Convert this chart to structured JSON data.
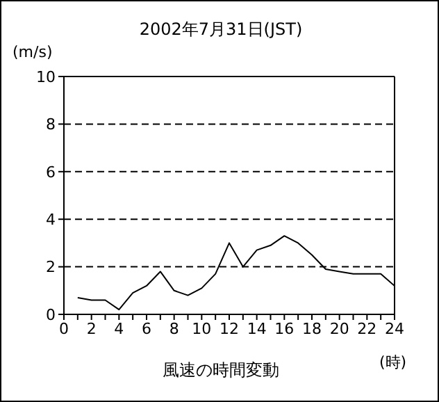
{
  "chart_data": {
    "type": "line",
    "title": "2002年7月31日(JST)",
    "xlabel": "風速の時間変動",
    "ylabel": "(m/s)",
    "annotations": [
      "(時)"
    ],
    "x": [
      1,
      2,
      3,
      4,
      5,
      6,
      7,
      8,
      9,
      10,
      11,
      12,
      13,
      14,
      15,
      16,
      17,
      18,
      19,
      20,
      21,
      22,
      23,
      24
    ],
    "series": [
      {
        "color": "#000000",
        "values": [
          0.7,
          0.6,
          0.6,
          0.2,
          0.9,
          1.2,
          1.8,
          1.0,
          0.8,
          1.1,
          1.7,
          3.0,
          2.0,
          2.7,
          2.9,
          3.3,
          3.0,
          2.5,
          1.9,
          1.8,
          1.7,
          1.7,
          1.7,
          1.2
        ]
      }
    ],
    "xlim": [
      0,
      24
    ],
    "xticks": [
      0,
      {
        "value": 1,
        "label": null
      },
      2,
      {
        "value": 3,
        "label": null
      },
      4,
      {
        "value": 5,
        "label": null
      },
      6,
      {
        "value": 7,
        "label": null
      },
      8,
      {
        "value": 9,
        "label": null
      },
      10,
      {
        "value": 11,
        "label": null
      },
      12,
      {
        "value": 13,
        "label": null
      },
      14,
      {
        "value": 15,
        "label": null
      },
      16,
      {
        "value": 17,
        "label": null
      },
      18,
      {
        "value": 19,
        "label": null
      },
      20,
      {
        "value": 21,
        "label": null
      },
      22,
      {
        "value": 23,
        "label": null
      },
      24
    ],
    "ylim": [
      0,
      10
    ],
    "yticks": [
      0,
      2,
      4,
      6,
      8,
      10
    ],
    "grid": "y",
    "marker": "none",
    "line_style": "solid"
  }
}
